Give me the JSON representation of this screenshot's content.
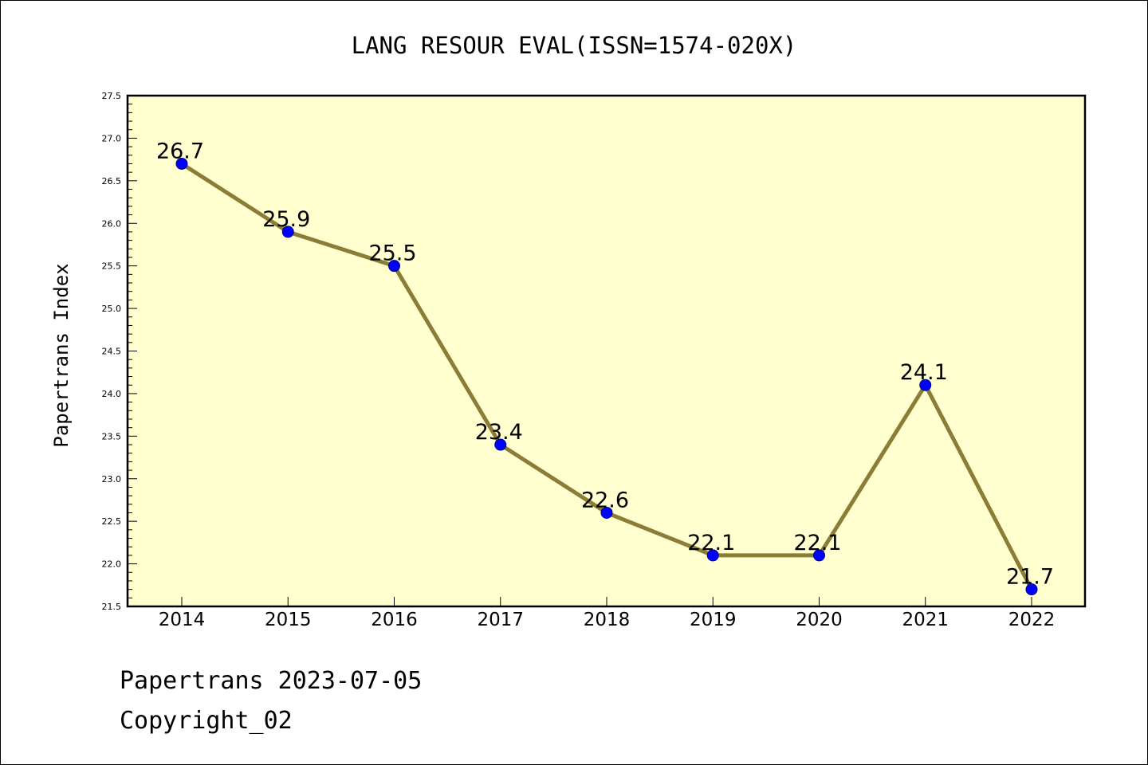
{
  "chart_data": {
    "type": "line",
    "title": "LANG RESOUR EVAL(ISSN=1574-020X)",
    "ylabel": "Papertrans Index",
    "xlabel": "",
    "categories": [
      "2014",
      "2015",
      "2016",
      "2017",
      "2018",
      "2019",
      "2020",
      "2021",
      "2022"
    ],
    "values": [
      26.7,
      25.9,
      25.5,
      23.4,
      22.6,
      22.1,
      22.1,
      24.1,
      21.7
    ],
    "data_labels": [
      "26.7",
      "25.9",
      "25.5",
      "23.4",
      "22.6",
      "22.1",
      "22.1",
      "24.1",
      "21.7"
    ],
    "ylim": [
      21.5,
      27.5
    ],
    "yticks": [
      "21.5",
      "22.0",
      "22.5",
      "23.0",
      "23.5",
      "24.0",
      "24.5",
      "25.0",
      "25.5",
      "26.0",
      "26.5",
      "27.0",
      "27.5"
    ],
    "grid": false,
    "colors": {
      "plot_background": "#ffffd0",
      "line": "#8b7d35",
      "marker": "#0000ff",
      "marker_edge": "#00008b"
    }
  },
  "footer": {
    "line1": "Papertrans 2023-07-05",
    "line2": "Copyright_02"
  }
}
